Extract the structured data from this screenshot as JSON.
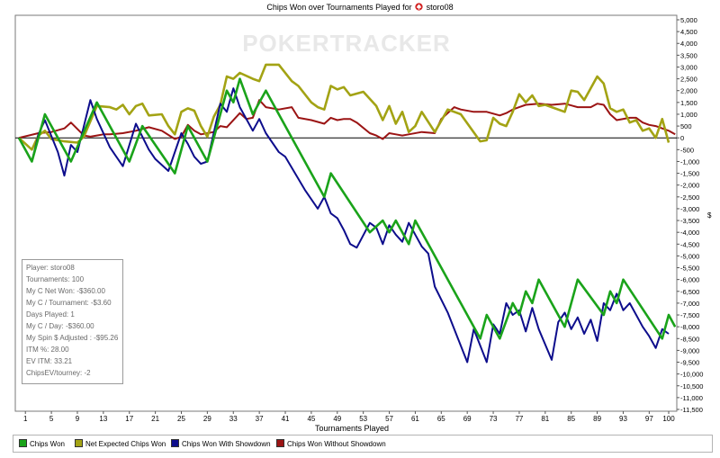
{
  "title": "Chips Won over Tournaments Played for",
  "player_name": "storo08",
  "player_icon": "pokerstars-spade-icon",
  "watermark": "POKERTRACKER",
  "stats_box": [
    "Player: storo08",
    "Tournaments: 100",
    "My C Net Won: -$360.00",
    "My C / Tournament: -$3.60",
    "Days Played: 1",
    "My C / Day: -$360.00",
    "My Spin $ Adjusted : -$95.26",
    "ITM %: 28.00",
    "EV ITM: 33.21",
    "ChipsEV/tourney: -2"
  ],
  "legend": [
    {
      "name": "Chips Won",
      "color": "#1aa31a"
    },
    {
      "name": "Net Expected Chips Won",
      "color": "#a3a314"
    },
    {
      "name": "Chips Won With Showdown",
      "color": "#0d0d8c"
    },
    {
      "name": "Chips Won Without Showdown",
      "color": "#9b1414"
    }
  ],
  "chart_data": {
    "type": "line",
    "title": "Chips Won over Tournaments Played for storo08",
    "xlabel": "Tournaments Played",
    "ylabel": "$",
    "xlim": [
      0,
      100
    ],
    "ylim": [
      -11500,
      5000
    ],
    "xticks": [
      1,
      5,
      9,
      13,
      17,
      21,
      25,
      29,
      33,
      37,
      41,
      45,
      49,
      53,
      57,
      61,
      65,
      69,
      73,
      77,
      81,
      85,
      89,
      93,
      97,
      100
    ],
    "yticks": [
      5000,
      4500,
      4000,
      3500,
      3000,
      2500,
      2000,
      1500,
      1000,
      500,
      0,
      -500,
      -1000,
      -1500,
      -2000,
      -2500,
      -3000,
      -3500,
      -4000,
      -4500,
      -5000,
      -5500,
      -6000,
      -6500,
      -7000,
      -7500,
      -8000,
      -8500,
      -9000,
      -9500,
      -10000,
      -10500,
      -11000,
      -11500
    ],
    "grid": false,
    "legend_position": "bottom",
    "series": [
      {
        "name": "Chips Won",
        "color": "#1aa31a",
        "points": [
          [
            0,
            0
          ],
          [
            2,
            -1000
          ],
          [
            4,
            1000
          ],
          [
            8,
            -1000
          ],
          [
            12,
            1500
          ],
          [
            17,
            -1000
          ],
          [
            19,
            500
          ],
          [
            24,
            -1500
          ],
          [
            26,
            500
          ],
          [
            29,
            -1000
          ],
          [
            32,
            2000
          ],
          [
            33,
            1500
          ],
          [
            34,
            2500
          ],
          [
            36,
            1000
          ],
          [
            38,
            2000
          ],
          [
            40,
            1000
          ],
          [
            47,
            -2500
          ],
          [
            48,
            -1500
          ],
          [
            54,
            -4000
          ],
          [
            56,
            -3500
          ],
          [
            57,
            -4000
          ],
          [
            58,
            -3500
          ],
          [
            60,
            -4500
          ],
          [
            61,
            -3500
          ],
          [
            63,
            -4500
          ],
          [
            71,
            -8500
          ],
          [
            72,
            -7500
          ],
          [
            74,
            -8500
          ],
          [
            76,
            -7000
          ],
          [
            77,
            -7500
          ],
          [
            78,
            -6500
          ],
          [
            79,
            -7000
          ],
          [
            80,
            -6000
          ],
          [
            84,
            -8000
          ],
          [
            86,
            -6000
          ],
          [
            90,
            -7500
          ],
          [
            91,
            -6500
          ],
          [
            92,
            -7000
          ],
          [
            93,
            -6000
          ],
          [
            99,
            -8500
          ],
          [
            100,
            -7500
          ],
          [
            101,
            -8000
          ]
        ]
      },
      {
        "name": "Net Expected Chips Won",
        "color": "#a3a314",
        "points": [
          [
            0,
            0
          ],
          [
            2,
            -500
          ],
          [
            3,
            100
          ],
          [
            4,
            300
          ],
          [
            5,
            -50
          ],
          [
            7,
            -150
          ],
          [
            9,
            -200
          ],
          [
            10,
            50
          ],
          [
            12,
            1350
          ],
          [
            14,
            1300
          ],
          [
            15,
            1200
          ],
          [
            16,
            1400
          ],
          [
            17,
            1000
          ],
          [
            18,
            1350
          ],
          [
            19,
            1450
          ],
          [
            20,
            950
          ],
          [
            22,
            1000
          ],
          [
            23,
            500
          ],
          [
            24,
            150
          ],
          [
            25,
            1100
          ],
          [
            26,
            1250
          ],
          [
            27,
            1150
          ],
          [
            28,
            500
          ],
          [
            29,
            50
          ],
          [
            30,
            900
          ],
          [
            31,
            1400
          ],
          [
            32,
            2600
          ],
          [
            33,
            2500
          ],
          [
            34,
            2750
          ],
          [
            36,
            2500
          ],
          [
            37,
            2400
          ],
          [
            38,
            3100
          ],
          [
            40,
            3100
          ],
          [
            42,
            2400
          ],
          [
            43,
            2200
          ],
          [
            45,
            1500
          ],
          [
            46,
            1300
          ],
          [
            47,
            1200
          ],
          [
            48,
            2200
          ],
          [
            49,
            2050
          ],
          [
            50,
            2150
          ],
          [
            51,
            1800
          ],
          [
            53,
            1950
          ],
          [
            55,
            1350
          ],
          [
            56,
            750
          ],
          [
            57,
            1350
          ],
          [
            58,
            600
          ],
          [
            59,
            1100
          ],
          [
            60,
            250
          ],
          [
            61,
            500
          ],
          [
            62,
            1100
          ],
          [
            64,
            250
          ],
          [
            66,
            1200
          ],
          [
            68,
            1000
          ],
          [
            71,
            -150
          ],
          [
            72,
            -100
          ],
          [
            73,
            850
          ],
          [
            74,
            600
          ],
          [
            75,
            500
          ],
          [
            76,
            1100
          ],
          [
            77,
            1850
          ],
          [
            78,
            1500
          ],
          [
            79,
            1800
          ],
          [
            80,
            1350
          ],
          [
            81,
            1400
          ],
          [
            82,
            1300
          ],
          [
            84,
            1100
          ],
          [
            85,
            2000
          ],
          [
            86,
            1950
          ],
          [
            87,
            1600
          ],
          [
            89,
            2600
          ],
          [
            90,
            2300
          ],
          [
            91,
            1250
          ],
          [
            92,
            1100
          ],
          [
            93,
            1200
          ],
          [
            94,
            650
          ],
          [
            95,
            750
          ],
          [
            96,
            300
          ],
          [
            97,
            400
          ],
          [
            98,
            0
          ],
          [
            99,
            800
          ],
          [
            100,
            -200
          ]
        ]
      },
      {
        "name": "Chips Won With Showdown",
        "color": "#0d0d8c",
        "points": [
          [
            0,
            0
          ],
          [
            2,
            -1000
          ],
          [
            3,
            150
          ],
          [
            4,
            750
          ],
          [
            6,
            -600
          ],
          [
            7,
            -1600
          ],
          [
            8,
            -300
          ],
          [
            9,
            -600
          ],
          [
            11,
            1600
          ],
          [
            12,
            800
          ],
          [
            14,
            -400
          ],
          [
            16,
            -1200
          ],
          [
            18,
            600
          ],
          [
            20,
            -500
          ],
          [
            21,
            -900
          ],
          [
            23,
            -1400
          ],
          [
            25,
            200
          ],
          [
            26,
            -250
          ],
          [
            27,
            -800
          ],
          [
            28,
            -1100
          ],
          [
            29,
            -1000
          ],
          [
            31,
            1450
          ],
          [
            32,
            1100
          ],
          [
            33,
            2100
          ],
          [
            34,
            1300
          ],
          [
            36,
            300
          ],
          [
            37,
            800
          ],
          [
            38,
            200
          ],
          [
            40,
            -600
          ],
          [
            41,
            -800
          ],
          [
            44,
            -2200
          ],
          [
            46,
            -3000
          ],
          [
            47,
            -2500
          ],
          [
            48,
            -3200
          ],
          [
            49,
            -3400
          ],
          [
            50,
            -3900
          ],
          [
            51,
            -4500
          ],
          [
            52,
            -4650
          ],
          [
            54,
            -3600
          ],
          [
            55,
            -3800
          ],
          [
            56,
            -4500
          ],
          [
            57,
            -3700
          ],
          [
            58,
            -4100
          ],
          [
            59,
            -4400
          ],
          [
            60,
            -3600
          ],
          [
            61,
            -4100
          ],
          [
            62,
            -4600
          ],
          [
            63,
            -4900
          ],
          [
            64,
            -6300
          ],
          [
            66,
            -7400
          ],
          [
            69,
            -9500
          ],
          [
            70,
            -8100
          ],
          [
            71,
            -8800
          ],
          [
            72,
            -9500
          ],
          [
            73,
            -7900
          ],
          [
            74,
            -8300
          ],
          [
            75,
            -7000
          ],
          [
            76,
            -7500
          ],
          [
            77,
            -7300
          ],
          [
            78,
            -8200
          ],
          [
            79,
            -7200
          ],
          [
            80,
            -8100
          ],
          [
            82,
            -9400
          ],
          [
            83,
            -7800
          ],
          [
            84,
            -7400
          ],
          [
            85,
            -8100
          ],
          [
            86,
            -7600
          ],
          [
            87,
            -8300
          ],
          [
            88,
            -7700
          ],
          [
            89,
            -8600
          ],
          [
            90,
            -7000
          ],
          [
            91,
            -7300
          ],
          [
            92,
            -6600
          ],
          [
            93,
            -7300
          ],
          [
            94,
            -7000
          ],
          [
            95,
            -7500
          ],
          [
            96,
            -8000
          ],
          [
            97,
            -8400
          ],
          [
            98,
            -8900
          ],
          [
            99,
            -8100
          ],
          [
            100,
            -8300
          ]
        ]
      },
      {
        "name": "Chips Won Without Showdown",
        "color": "#9b1414",
        "points": [
          [
            0,
            0
          ],
          [
            3,
            200
          ],
          [
            5,
            250
          ],
          [
            7,
            400
          ],
          [
            8,
            650
          ],
          [
            10,
            100
          ],
          [
            11,
            50
          ],
          [
            12,
            100
          ],
          [
            13,
            150
          ],
          [
            14,
            150
          ],
          [
            16,
            200
          ],
          [
            18,
            300
          ],
          [
            20,
            450
          ],
          [
            22,
            300
          ],
          [
            24,
            -50
          ],
          [
            25,
            50
          ],
          [
            26,
            550
          ],
          [
            27,
            300
          ],
          [
            28,
            150
          ],
          [
            29,
            200
          ],
          [
            30,
            250
          ],
          [
            31,
            500
          ],
          [
            32,
            450
          ],
          [
            34,
            1050
          ],
          [
            35,
            800
          ],
          [
            36,
            850
          ],
          [
            37,
            1600
          ],
          [
            38,
            1300
          ],
          [
            40,
            1200
          ],
          [
            42,
            1300
          ],
          [
            43,
            850
          ],
          [
            45,
            750
          ],
          [
            47,
            600
          ],
          [
            48,
            850
          ],
          [
            49,
            750
          ],
          [
            50,
            800
          ],
          [
            51,
            800
          ],
          [
            52,
            650
          ],
          [
            54,
            200
          ],
          [
            55,
            100
          ],
          [
            56,
            -50
          ],
          [
            57,
            200
          ],
          [
            58,
            150
          ],
          [
            59,
            100
          ],
          [
            60,
            150
          ],
          [
            62,
            250
          ],
          [
            64,
            200
          ],
          [
            65,
            800
          ],
          [
            67,
            1300
          ],
          [
            68,
            1200
          ],
          [
            70,
            1100
          ],
          [
            72,
            1100
          ],
          [
            74,
            950
          ],
          [
            75,
            1050
          ],
          [
            76,
            1200
          ],
          [
            77,
            1300
          ],
          [
            78,
            1400
          ],
          [
            80,
            1450
          ],
          [
            82,
            1400
          ],
          [
            84,
            1450
          ],
          [
            86,
            1300
          ],
          [
            88,
            1300
          ],
          [
            89,
            1450
          ],
          [
            90,
            1400
          ],
          [
            91,
            1000
          ],
          [
            92,
            750
          ],
          [
            94,
            850
          ],
          [
            95,
            850
          ],
          [
            96,
            650
          ],
          [
            97,
            550
          ],
          [
            98,
            500
          ],
          [
            100,
            300
          ],
          [
            101,
            150
          ]
        ]
      }
    ]
  }
}
